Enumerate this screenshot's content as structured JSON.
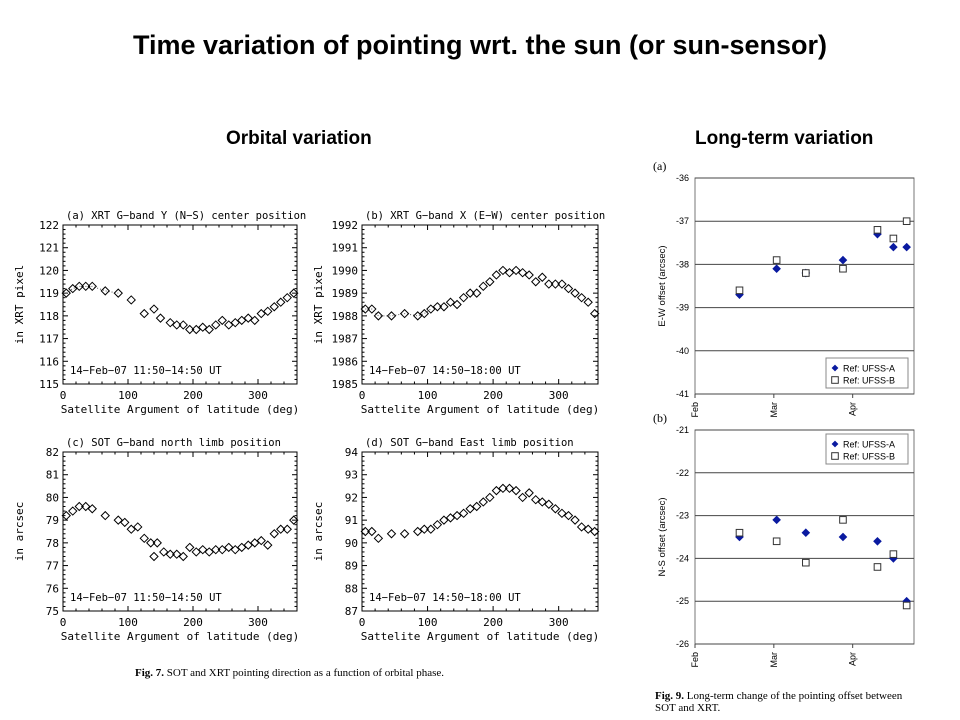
{
  "header": {
    "title": "Time variation of pointing wrt. the sun (or sun-sensor)",
    "left_subtitle": "Orbital variation",
    "right_subtitle": "Long-term variation"
  },
  "captions": {
    "fig7_label": "Fig. 7.",
    "fig7_text": "SOT and XRT pointing direction as a function of orbital phase.",
    "fig9_label": "Fig. 9.",
    "fig9_text": "Long-term change of the pointing offset between SOT and XRT."
  },
  "chart_data": [
    {
      "type": "scatter",
      "panel": "(a) XRT G−band Y (N−S) center position",
      "xlabel": "Satellite Argument of latitude (deg)",
      "ylabel": "in XRT pixel",
      "xlim": [
        0,
        360
      ],
      "ylim": [
        115,
        122
      ],
      "xticks": [
        0,
        100,
        200,
        300
      ],
      "yticks": [
        115,
        116,
        117,
        118,
        119,
        120,
        121,
        122
      ],
      "annotation": "14−Feb−07 11:50−14:50 UT",
      "dotted_segment": true,
      "x": [
        5,
        15,
        25,
        35,
        45,
        65,
        85,
        105,
        125,
        140,
        150,
        165,
        175,
        185,
        195,
        205,
        215,
        225,
        235,
        245,
        255,
        265,
        275,
        285,
        295,
        305,
        315,
        325,
        335,
        345,
        355
      ],
      "y": [
        119.0,
        119.2,
        119.3,
        119.3,
        119.3,
        119.1,
        119.0,
        118.7,
        118.1,
        118.3,
        117.9,
        117.7,
        117.6,
        117.6,
        117.4,
        117.4,
        117.5,
        117.4,
        117.6,
        117.8,
        117.6,
        117.7,
        117.8,
        117.9,
        117.8,
        118.1,
        118.2,
        118.4,
        118.6,
        118.8,
        119.0
      ]
    },
    {
      "type": "scatter",
      "panel": "(b) XRT G−band X (E−W) center position",
      "xlabel": "Sattelite Argument of latitude (deg)",
      "ylabel": "in XRT pixel",
      "xlim": [
        0,
        360
      ],
      "ylim": [
        1985,
        1992
      ],
      "xticks": [
        0,
        100,
        200,
        300
      ],
      "yticks": [
        1985,
        1986,
        1987,
        1988,
        1989,
        1990,
        1991,
        1992
      ],
      "annotation": "14−Feb−07 14:50−18:00 UT",
      "dotted_segment": true,
      "x": [
        5,
        15,
        25,
        45,
        65,
        85,
        95,
        105,
        115,
        125,
        135,
        145,
        155,
        165,
        175,
        185,
        195,
        205,
        215,
        225,
        235,
        245,
        255,
        265,
        275,
        285,
        295,
        305,
        315,
        325,
        335,
        345,
        355
      ],
      "y": [
        1988.3,
        1988.3,
        1988.0,
        1988.0,
        1988.1,
        1988.0,
        1988.1,
        1988.3,
        1988.4,
        1988.4,
        1988.6,
        1988.5,
        1988.8,
        1989.0,
        1989.0,
        1989.3,
        1989.5,
        1989.8,
        1990.0,
        1989.9,
        1990.0,
        1989.9,
        1989.8,
        1989.5,
        1989.7,
        1989.4,
        1989.4,
        1989.4,
        1989.2,
        1989.0,
        1988.8,
        1988.6,
        1988.1
      ]
    },
    {
      "type": "scatter",
      "panel": "(c) SOT G−band north limb position",
      "xlabel": "Satellite Argument of latitude (deg)",
      "ylabel": "in arcsec",
      "xlim": [
        0,
        360
      ],
      "ylim": [
        75,
        82
      ],
      "xticks": [
        0,
        100,
        200,
        300
      ],
      "yticks": [
        75,
        76,
        77,
        78,
        79,
        80,
        81,
        82
      ],
      "annotation": "14−Feb−07 11:50−14:50 UT",
      "x": [
        5,
        15,
        25,
        35,
        45,
        65,
        85,
        95,
        105,
        115,
        125,
        135,
        140,
        145,
        155,
        165,
        175,
        185,
        195,
        205,
        215,
        225,
        235,
        245,
        255,
        265,
        275,
        285,
        295,
        305,
        315,
        325,
        335,
        345,
        355
      ],
      "y": [
        79.2,
        79.4,
        79.6,
        79.6,
        79.5,
        79.2,
        79.0,
        78.9,
        78.6,
        78.7,
        78.2,
        78.0,
        77.4,
        78.0,
        77.6,
        77.5,
        77.5,
        77.4,
        77.8,
        77.6,
        77.7,
        77.6,
        77.7,
        77.7,
        77.8,
        77.7,
        77.8,
        77.9,
        78.0,
        78.1,
        77.9,
        78.4,
        78.6,
        78.6,
        79.0
      ]
    },
    {
      "type": "scatter",
      "panel": "(d) SOT G−band East limb position",
      "xlabel": "Sattelite Argument of latitude (deg)",
      "ylabel": "in arcsec",
      "xlim": [
        0,
        360
      ],
      "ylim": [
        87,
        94
      ],
      "xticks": [
        0,
        100,
        200,
        300
      ],
      "yticks": [
        87,
        88,
        89,
        90,
        91,
        92,
        93,
        94
      ],
      "annotation": "14−Feb−07 14:50−18:00 UT",
      "x": [
        5,
        15,
        25,
        45,
        65,
        85,
        95,
        105,
        115,
        125,
        135,
        145,
        155,
        165,
        175,
        185,
        195,
        205,
        215,
        225,
        235,
        245,
        255,
        265,
        275,
        285,
        295,
        305,
        315,
        325,
        335,
        345,
        355
      ],
      "y": [
        90.5,
        90.5,
        90.2,
        90.4,
        90.4,
        90.5,
        90.6,
        90.6,
        90.8,
        91.0,
        91.1,
        91.2,
        91.3,
        91.5,
        91.6,
        91.8,
        92.0,
        92.3,
        92.4,
        92.4,
        92.3,
        92.0,
        92.2,
        91.9,
        91.8,
        91.7,
        91.5,
        91.3,
        91.2,
        91.0,
        90.7,
        90.6,
        90.5
      ]
    },
    {
      "type": "scatter",
      "panel": "(a)",
      "ylabel": "E-W offset (arcsec)",
      "ylim": [
        -41,
        -36
      ],
      "yticks": [
        -41,
        -40,
        -39,
        -38,
        -37,
        -36
      ],
      "xticks": [
        "Feb",
        "Mar",
        "Apr"
      ],
      "xlim_days": [
        0,
        75
      ],
      "grid": true,
      "legend_position": "bottom-right",
      "series": [
        {
          "name": "Ref: UFSS-A",
          "marker": "filled-diamond",
          "color": "#0a1aa0",
          "x": [
            13,
            27,
            38,
            52,
            65,
            71,
            76
          ],
          "y": [
            -38.7,
            -38.1,
            -38.2,
            -37.9,
            -37.3,
            -37.6,
            -37.6
          ]
        },
        {
          "name": "Ref: UFSS-B",
          "marker": "open-square",
          "color": "#333333",
          "x": [
            13,
            27,
            38,
            52,
            65,
            71,
            76
          ],
          "y": [
            -38.6,
            -37.9,
            -38.2,
            -38.1,
            -37.2,
            -37.4,
            -37.0
          ]
        }
      ]
    },
    {
      "type": "scatter",
      "panel": "(b)",
      "ylabel": "N-S offset (arcsec)",
      "ylim": [
        -26,
        -21
      ],
      "yticks": [
        -26,
        -25,
        -24,
        -23,
        -22,
        -21
      ],
      "xticks": [
        "Feb",
        "Mar",
        "Apr"
      ],
      "xlim_days": [
        0,
        75
      ],
      "grid": true,
      "legend_position": "top-right",
      "series": [
        {
          "name": "Ref: UFSS-A",
          "marker": "filled-diamond",
          "color": "#0a1aa0",
          "x": [
            13,
            27,
            38,
            52,
            65,
            71,
            76
          ],
          "y": [
            -23.5,
            -23.1,
            -23.4,
            -23.5,
            -23.6,
            -24.0,
            -25.0
          ]
        },
        {
          "name": "Ref: UFSS-B",
          "marker": "open-square",
          "color": "#333333",
          "x": [
            13,
            27,
            38,
            52,
            65,
            71,
            76
          ],
          "y": [
            -23.4,
            -23.6,
            -24.1,
            -23.1,
            -24.2,
            -23.9,
            -25.1
          ]
        }
      ]
    }
  ]
}
